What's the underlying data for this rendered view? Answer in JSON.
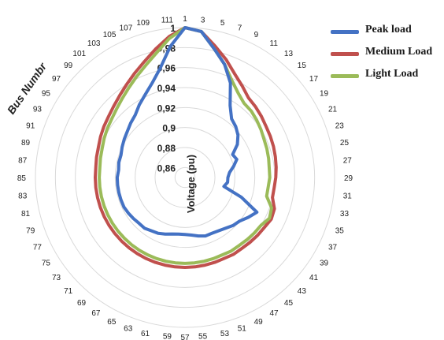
{
  "chart_data": {
    "type": "radar",
    "title": "",
    "category_axis_label": "Bus Numbr",
    "radial_axis_label": "Voltage (pu)",
    "rlim": [
      0.85,
      1.0
    ],
    "radial_ticks": [
      "0,86",
      "0,88",
      "0,9",
      "0,92",
      "0,94",
      "0,96",
      "0,98",
      "1"
    ],
    "categories": [
      "1",
      "3",
      "5",
      "7",
      "9",
      "11",
      "13",
      "15",
      "17",
      "19",
      "21",
      "23",
      "25",
      "27",
      "29",
      "31",
      "33",
      "35",
      "37",
      "39",
      "41",
      "43",
      "45",
      "47",
      "49",
      "51",
      "53",
      "55",
      "57",
      "59",
      "61",
      "63",
      "65",
      "67",
      "69",
      "71",
      "73",
      "75",
      "77",
      "79",
      "81",
      "83",
      "85",
      "87",
      "89",
      "91",
      "93",
      "95",
      "97",
      "99",
      "101",
      "103",
      "105",
      "107",
      "109",
      "111"
    ],
    "legend_position": "top-right",
    "series": [
      {
        "name": "Peak load",
        "color": "#4472C4",
        "values": [
          1.0,
          0.997,
          0.982,
          0.97,
          0.955,
          0.935,
          0.925,
          0.922,
          0.918,
          0.912,
          0.903,
          0.905,
          0.9,
          0.895,
          0.893,
          0.893,
          0.89,
          0.91,
          0.93,
          0.925,
          0.92,
          0.918,
          0.915,
          0.913,
          0.912,
          0.912,
          0.91,
          0.908,
          0.907,
          0.907,
          0.908,
          0.91,
          0.912,
          0.913,
          0.915,
          0.915,
          0.916,
          0.917,
          0.918,
          0.918,
          0.918,
          0.918,
          0.918,
          0.917,
          0.918,
          0.918,
          0.92,
          0.922,
          0.924,
          0.927,
          0.93,
          0.936,
          0.942,
          0.95,
          0.962,
          0.982
        ]
      },
      {
        "name": "Medium Load",
        "color": "#C0504D",
        "values": [
          1.0,
          0.997,
          0.985,
          0.975,
          0.965,
          0.958,
          0.952,
          0.95,
          0.948,
          0.946,
          0.945,
          0.944,
          0.943,
          0.942,
          0.941,
          0.94,
          0.94,
          0.945,
          0.946,
          0.944,
          0.943,
          0.942,
          0.941,
          0.941,
          0.94,
          0.94,
          0.94,
          0.94,
          0.94,
          0.94,
          0.94,
          0.94,
          0.94,
          0.94,
          0.94,
          0.94,
          0.94,
          0.94,
          0.94,
          0.94,
          0.94,
          0.94,
          0.94,
          0.94,
          0.941,
          0.942,
          0.944,
          0.946,
          0.948,
          0.951,
          0.955,
          0.96,
          0.966,
          0.973,
          0.982,
          0.992
        ]
      },
      {
        "name": "Light Load",
        "color": "#9BBB59",
        "values": [
          1.0,
          0.997,
          0.982,
          0.97,
          0.958,
          0.95,
          0.945,
          0.944,
          0.942,
          0.94,
          0.938,
          0.937,
          0.936,
          0.935,
          0.935,
          0.934,
          0.934,
          0.942,
          0.944,
          0.94,
          0.939,
          0.938,
          0.937,
          0.937,
          0.936,
          0.936,
          0.936,
          0.936,
          0.936,
          0.936,
          0.936,
          0.936,
          0.936,
          0.936,
          0.936,
          0.936,
          0.936,
          0.936,
          0.936,
          0.936,
          0.936,
          0.936,
          0.936,
          0.936,
          0.937,
          0.938,
          0.94,
          0.942,
          0.944,
          0.947,
          0.951,
          0.956,
          0.962,
          0.969,
          0.978,
          0.99
        ]
      }
    ]
  }
}
